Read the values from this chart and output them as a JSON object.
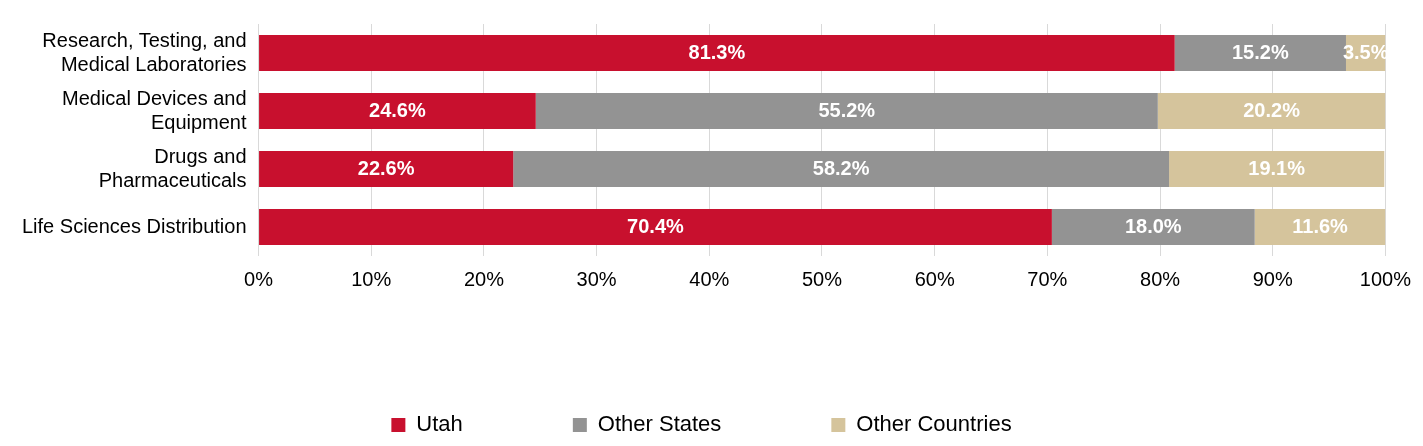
{
  "chart_data": {
    "type": "bar",
    "orientation": "horizontal",
    "stacked": true,
    "categories": [
      "Research, Testing, and Medical Laboratories",
      "Medical Devices and Equipment",
      "Drugs and Pharmaceuticals",
      "Life Sciences Distribution"
    ],
    "series": [
      {
        "name": "Utah",
        "color": "#c8102e",
        "values": [
          81.3,
          24.6,
          22.6,
          70.4
        ]
      },
      {
        "name": "Other States",
        "color": "#939393",
        "values": [
          15.2,
          55.2,
          58.2,
          18.0
        ]
      },
      {
        "name": "Other Countries",
        "color": "#d5c49c",
        "values": [
          3.5,
          20.2,
          19.1,
          11.6
        ]
      }
    ],
    "xlim": [
      0,
      100
    ],
    "xticks": [
      {
        "value": 0,
        "label": "0%"
      },
      {
        "value": 10,
        "label": "10%"
      },
      {
        "value": 20,
        "label": "20%"
      },
      {
        "value": 30,
        "label": "30%"
      },
      {
        "value": 40,
        "label": "40%"
      },
      {
        "value": 50,
        "label": "50%"
      },
      {
        "value": 60,
        "label": "60%"
      },
      {
        "value": 70,
        "label": "70%"
      },
      {
        "value": 80,
        "label": "80%"
      },
      {
        "value": 90,
        "label": "90%"
      },
      {
        "value": 100,
        "label": "100%"
      }
    ],
    "value_labels": [
      [
        "81.3%",
        "24.6%",
        "22.6%",
        "70.4%"
      ],
      [
        "15.2%",
        "55.2%",
        "58.2%",
        "18.0%"
      ],
      [
        "3.5%",
        "20.2%",
        "19.1%",
        "11.6%"
      ]
    ],
    "grid": "x",
    "legend": "bottom"
  }
}
